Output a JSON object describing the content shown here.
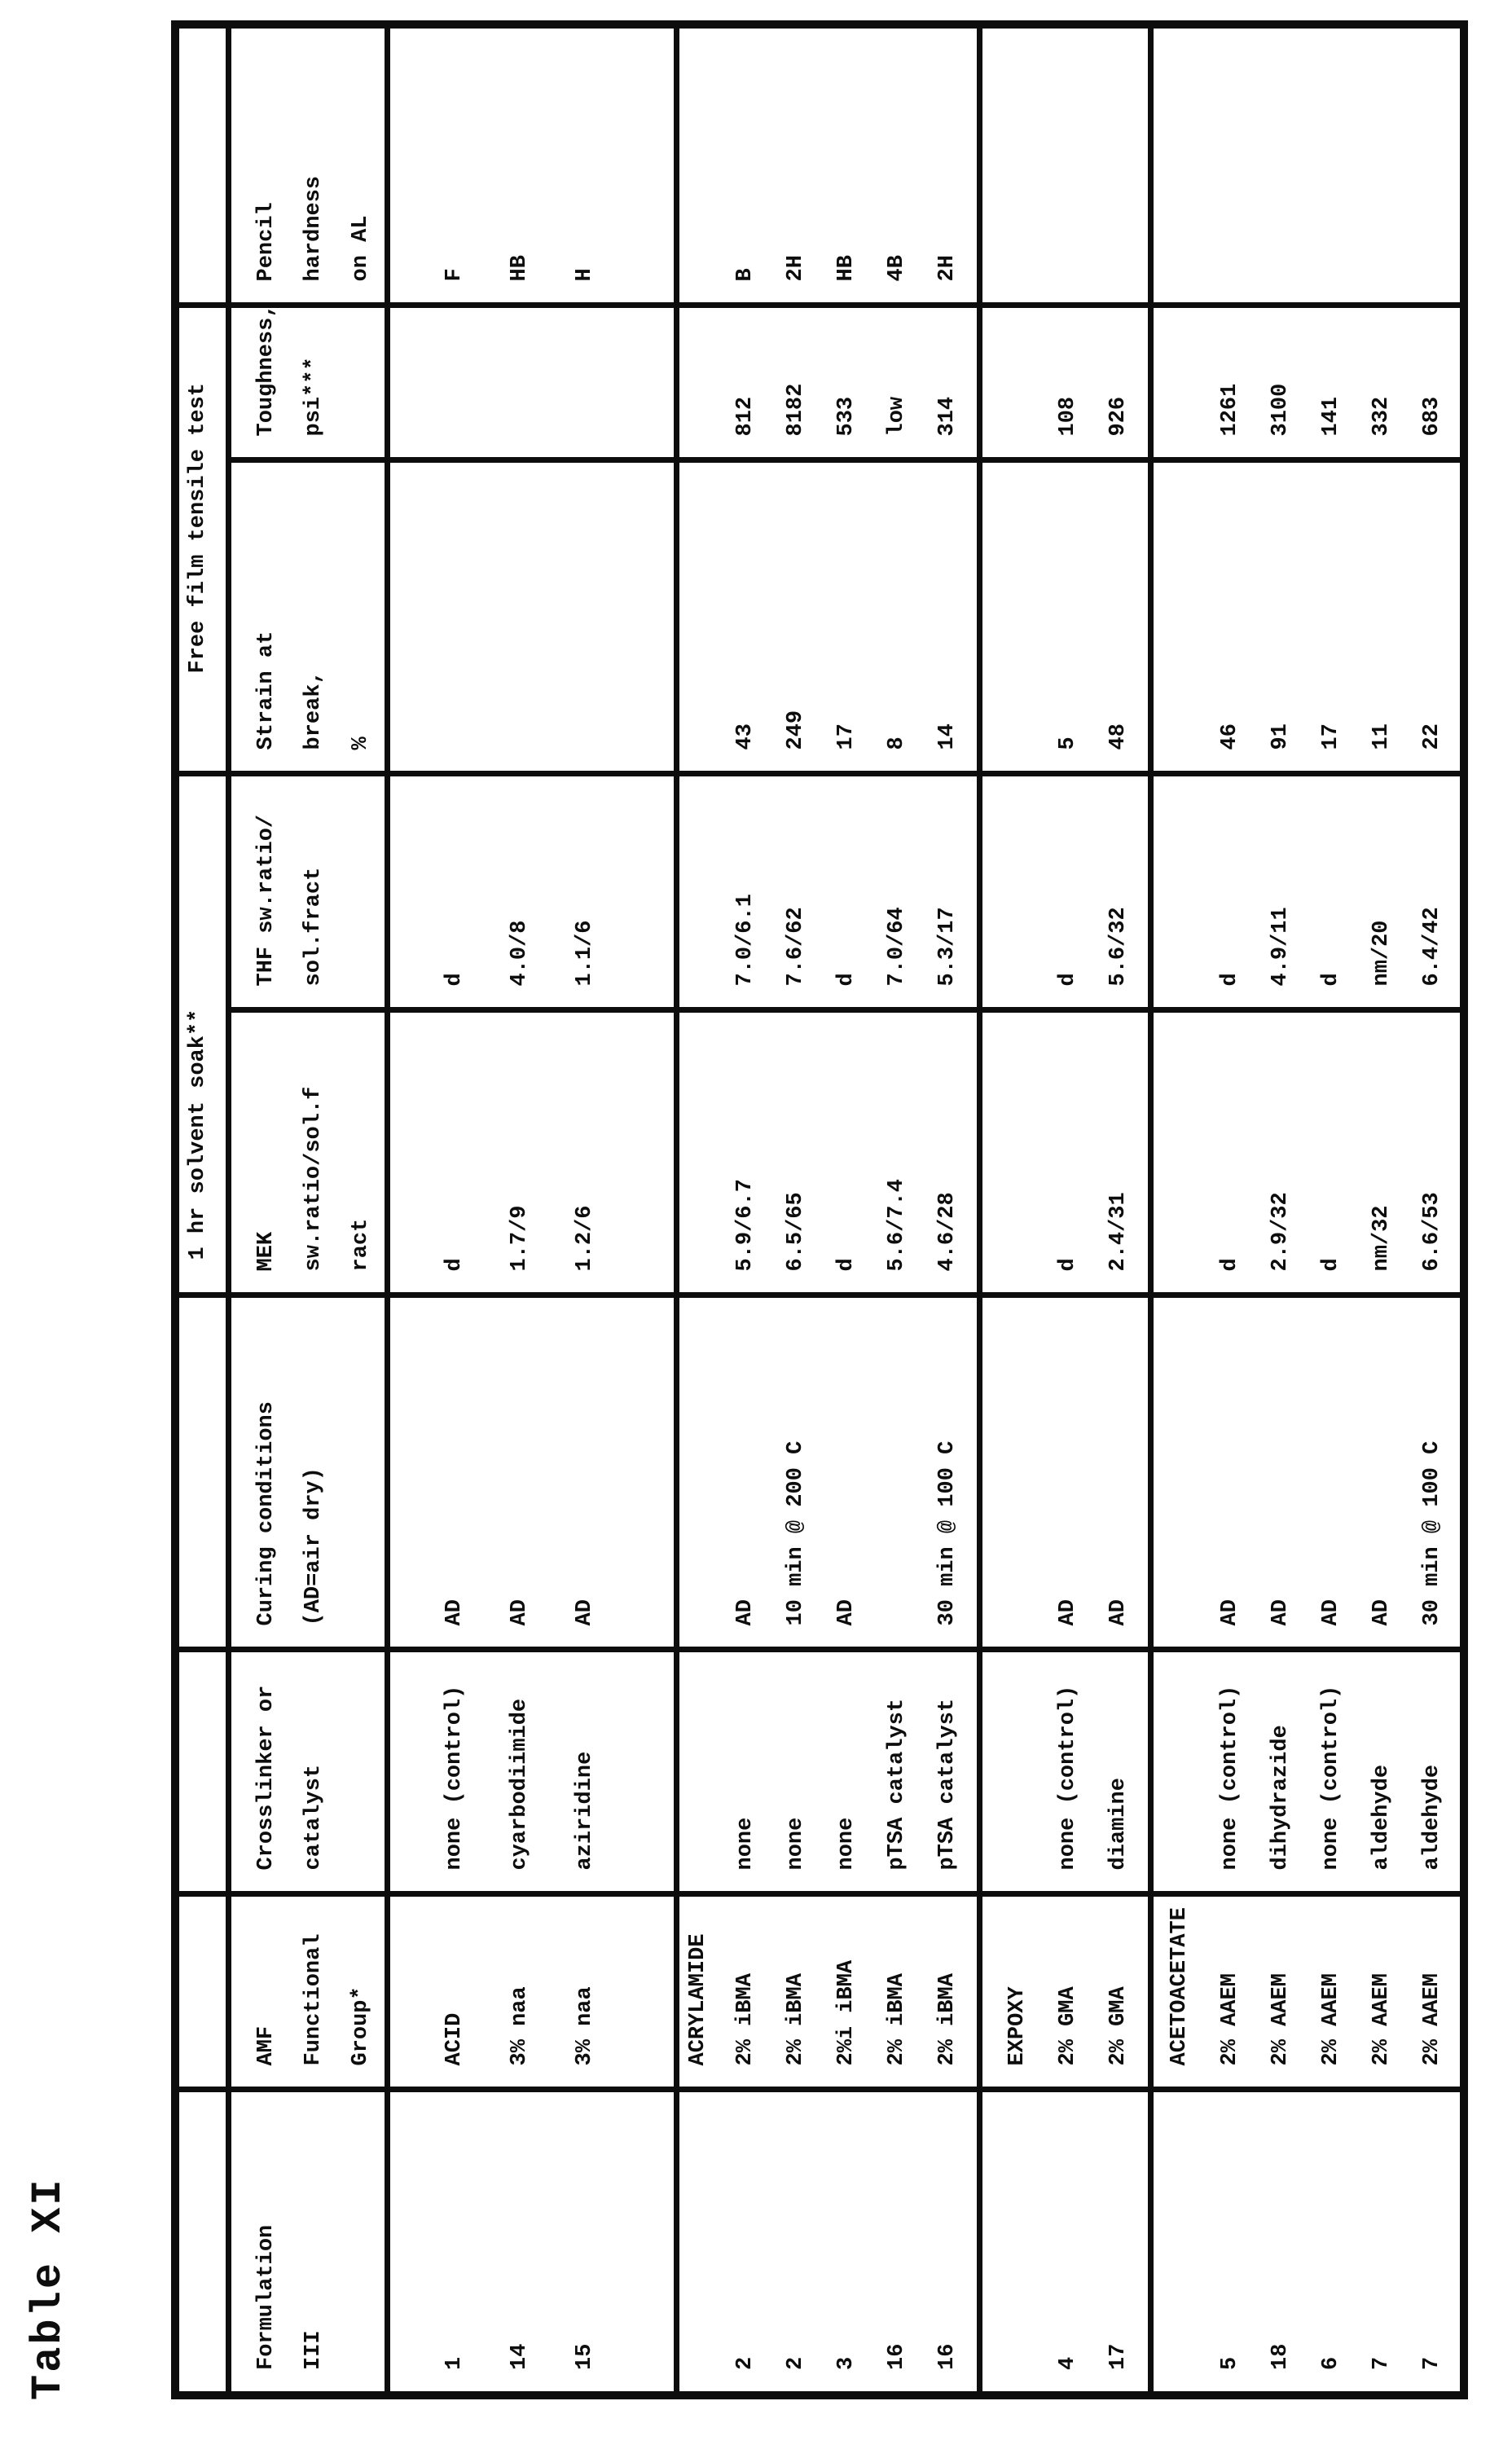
{
  "caption": "Table XI",
  "ink_color": "#0d0d0d",
  "paper_color": "#ffffff",
  "table": {
    "header": {
      "spanners": [
        {
          "label": "1 hr solvent soak**"
        },
        {
          "label": "Free film tensile test"
        }
      ],
      "columns": [
        {
          "id": "formulation",
          "text": "Formulation\nIII"
        },
        {
          "id": "functional",
          "text": "AMF\nFunctional\nGroup*"
        },
        {
          "id": "crosslinker",
          "text": "Crosslinker or\ncatalyst"
        },
        {
          "id": "curing",
          "text": "Curing conditions\n(AD=air dry)"
        },
        {
          "id": "mek",
          "text": "MEK\nsw.ratio/sol.f\nract"
        },
        {
          "id": "thf",
          "text": "THF sw.ratio/\nsol.fract"
        },
        {
          "id": "strain",
          "text": "Strain at\nbreak,\n%"
        },
        {
          "id": "toughness",
          "text": "Toughness,\npsi***"
        },
        {
          "id": "pencil",
          "text": "Pencil\nhardness\non AL"
        }
      ]
    },
    "groups": [
      {
        "label": "ACID",
        "label_row": false,
        "rows": [
          {
            "formulation": "1",
            "functional": "ACID",
            "crosslinker": "none (control)",
            "curing": "AD",
            "mek": "d",
            "thf": "d",
            "strain": "",
            "toughness": "",
            "pencil": "F"
          },
          {
            "formulation": "14",
            "functional": "3% naa",
            "crosslinker": "cyarbodiimide",
            "curing": "AD",
            "mek": "1.7/9",
            "thf": "4.0/8",
            "strain": "",
            "toughness": "",
            "pencil": "HB"
          },
          {
            "formulation": "15",
            "functional": "3% naa",
            "crosslinker": "aziridine",
            "curing": "AD",
            "mek": "1.2/6",
            "thf": "1.1/6",
            "strain": "",
            "toughness": "",
            "pencil": "H"
          }
        ]
      },
      {
        "label": "ACRYLAMIDE",
        "label_row": true,
        "rows": [
          {
            "formulation": "2",
            "functional": "2% iBMA",
            "crosslinker": "none",
            "curing": "AD",
            "mek": "5.9/6.7",
            "thf": "7.0/6.1",
            "strain": "43",
            "toughness": "812",
            "pencil": "B"
          },
          {
            "formulation": "2",
            "functional": "2% iBMA",
            "crosslinker": "none",
            "curing": "10 min @ 200 C",
            "mek": "6.5/65",
            "thf": "7.6/62",
            "strain": "249",
            "toughness": "8182",
            "pencil": "2H"
          },
          {
            "formulation": "3",
            "functional": "2%i iBMA",
            "crosslinker": "none",
            "curing": "AD",
            "mek": "d",
            "thf": "d",
            "strain": "17",
            "toughness": "533",
            "pencil": "HB"
          },
          {
            "formulation": "16",
            "functional": "2% iBMA",
            "crosslinker": "pTSA catalyst",
            "curing": "",
            "mek": "5.6/7.4",
            "thf": "7.0/64",
            "strain": "8",
            "toughness": "low",
            "pencil": "4B"
          },
          {
            "formulation": "16",
            "functional": "2% iBMA",
            "crosslinker": "pTSA catalyst",
            "curing": "30 min @ 100 C",
            "mek": "4.6/28",
            "thf": "5.3/17",
            "strain": "14",
            "toughness": "314",
            "pencil": "2H"
          }
        ]
      },
      {
        "label": "EXPOXY",
        "label_row": true,
        "rows": [
          {
            "formulation": "4",
            "functional": "2% GMA",
            "crosslinker": "none (control)",
            "curing": "AD",
            "mek": "d",
            "thf": "d",
            "strain": "5",
            "toughness": "108",
            "pencil": ""
          },
          {
            "formulation": "17",
            "functional": "2% GMA",
            "crosslinker": "diamine",
            "curing": "AD",
            "mek": "2.4/31",
            "thf": "5.6/32",
            "strain": "48",
            "toughness": "926",
            "pencil": ""
          }
        ]
      },
      {
        "label": "ACETOACETATE",
        "label_row": true,
        "rows": [
          {
            "formulation": "5",
            "functional": "2% AAEM",
            "crosslinker": "none (control)",
            "curing": "AD",
            "mek": "d",
            "thf": "d",
            "strain": "46",
            "toughness": "1261",
            "pencil": ""
          },
          {
            "formulation": "18",
            "functional": "2% AAEM",
            "crosslinker": "dihydrazide",
            "curing": "AD",
            "mek": "2.9/32",
            "thf": "4.9/11",
            "strain": "91",
            "toughness": "3100",
            "pencil": ""
          },
          {
            "formulation": "6",
            "functional": "2% AAEM",
            "crosslinker": "none (control)",
            "curing": "AD",
            "mek": "d",
            "thf": "d",
            "strain": "17",
            "toughness": "141",
            "pencil": ""
          },
          {
            "formulation": "7",
            "functional": "2% AAEM",
            "crosslinker": "aldehyde",
            "curing": "AD",
            "mek": "nm/32",
            "thf": "nm/20",
            "strain": "11",
            "toughness": "332",
            "pencil": ""
          },
          {
            "formulation": "7",
            "functional": "2% AAEM",
            "crosslinker": "aldehyde",
            "curing": "30 min @ 100 C",
            "mek": "6.6/53",
            "thf": "6.4/42",
            "strain": "22",
            "toughness": "683",
            "pencil": ""
          }
        ]
      }
    ]
  }
}
